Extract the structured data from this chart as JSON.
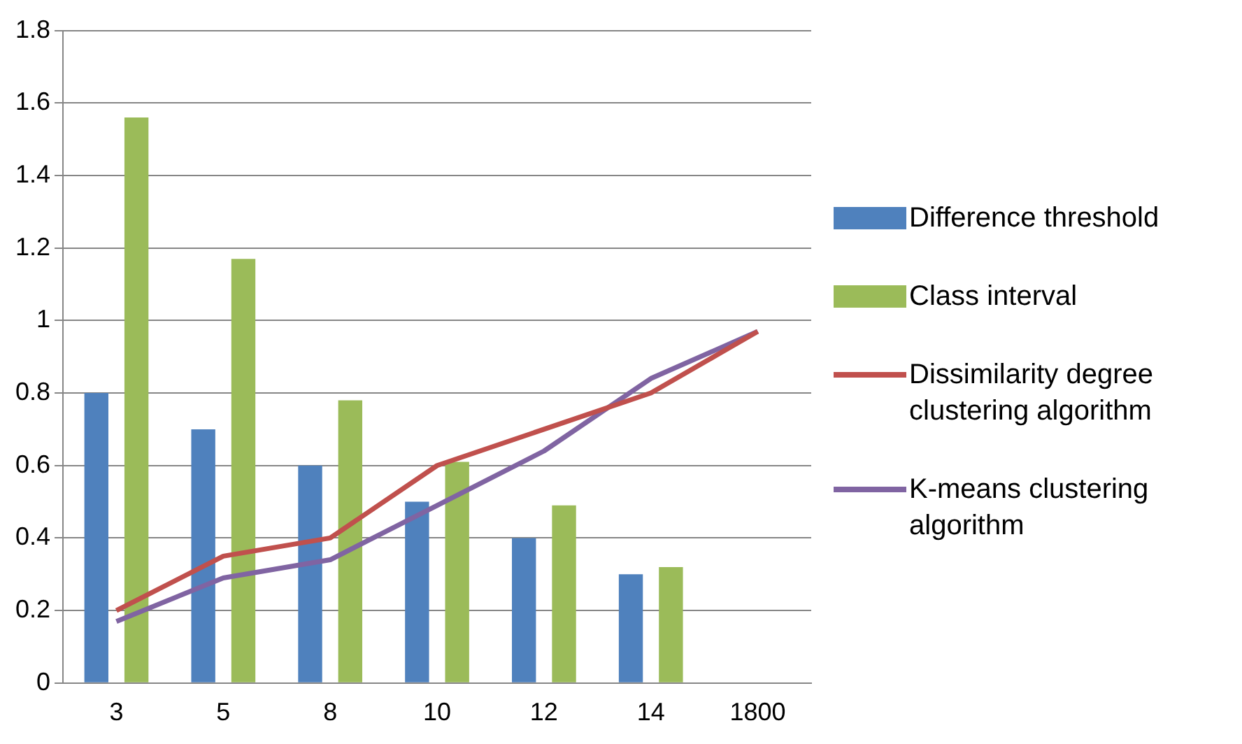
{
  "chart_data": {
    "type": "bar",
    "categories": [
      "3",
      "5",
      "8",
      "10",
      "12",
      "14",
      "1800"
    ],
    "series": [
      {
        "name": "Difference threshold",
        "color": "#4f81bd",
        "values": [
          0.8,
          0.7,
          0.6,
          0.5,
          0.4,
          0.3,
          null
        ]
      },
      {
        "name": "Class interval",
        "color": "#9bbb59",
        "values": [
          1.56,
          1.17,
          0.78,
          0.61,
          0.49,
          0.32,
          null
        ]
      },
      {
        "name": "Dissimilarity degree clustering algorithm",
        "type": "line",
        "color": "#c0504d",
        "values": [
          0.2,
          0.35,
          0.4,
          0.6,
          0.7,
          0.8,
          0.97
        ]
      },
      {
        "name": "K-means clustering algorithm",
        "type": "line",
        "color": "#8064a2",
        "values": [
          0.17,
          0.29,
          0.34,
          0.49,
          0.64,
          0.84,
          0.97
        ]
      }
    ],
    "ylim": [
      0,
      1.8
    ],
    "yticks": [
      0,
      0.2,
      0.4,
      0.6,
      0.8,
      1,
      1.2,
      1.4,
      1.6,
      1.8
    ],
    "grid": "y",
    "legend": "right",
    "marker": "none"
  }
}
